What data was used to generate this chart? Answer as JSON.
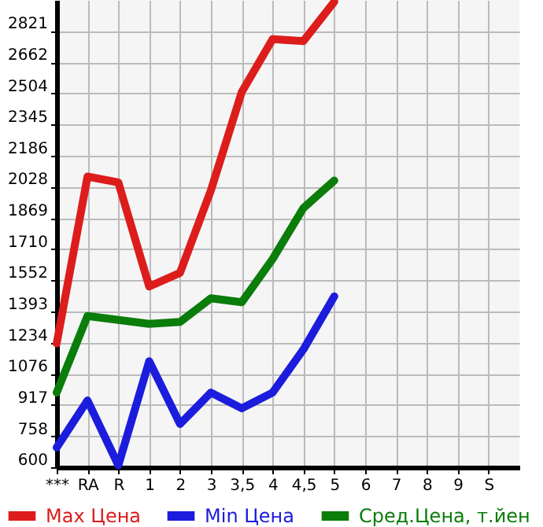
{
  "chart_data": {
    "type": "line",
    "categories": [
      "***",
      "RA",
      "R",
      "1",
      "2",
      "3",
      "3,5",
      "4",
      "4,5",
      "5",
      "6",
      "7",
      "8",
      "9",
      "S"
    ],
    "series": [
      {
        "name": "Max Цена",
        "color": "#dd1c1c",
        "values": [
          1230,
          2080,
          2050,
          1520,
          1590,
          2010,
          2510,
          2780,
          2770,
          2970,
          null,
          null,
          null,
          null,
          null
        ]
      },
      {
        "name": "Min Цена",
        "color": "#1c1cdd",
        "values": [
          700,
          940,
          610,
          1140,
          820,
          980,
          900,
          980,
          1200,
          1470,
          null,
          null,
          null,
          null,
          null
        ]
      },
      {
        "name": "Сред.Цена, т.йен",
        "color": "#0a7d0a",
        "values": [
          980,
          1370,
          1350,
          1330,
          1340,
          1460,
          1440,
          1660,
          1920,
          2060,
          null,
          null,
          null,
          null,
          null
        ]
      }
    ],
    "ylim": [
      600,
      2979
    ],
    "yticks": [
      600,
      758,
      917,
      1076,
      1234,
      1393,
      1552,
      1710,
      1869,
      2028,
      2186,
      2345,
      2504,
      2662,
      2821
    ],
    "grid": true,
    "legend": "bottom",
    "marker": "none",
    "line_style": "solid"
  }
}
